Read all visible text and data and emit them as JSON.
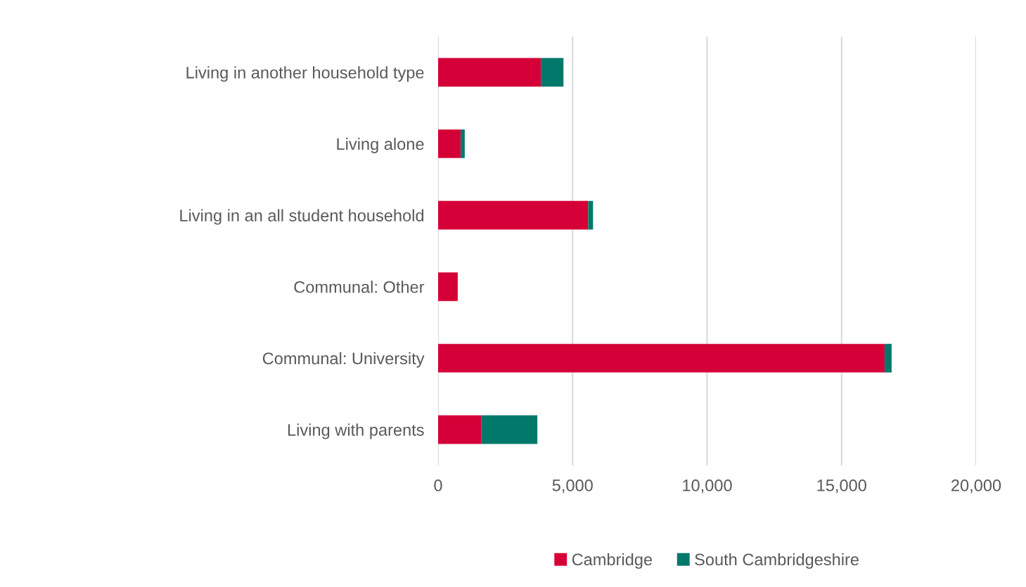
{
  "chart_data": {
    "type": "bar",
    "orientation": "horizontal",
    "stacked": true,
    "categories": [
      "Living in another household type",
      "Living alone",
      "Living in an all student household",
      "Communal: Other",
      "Communal: University",
      "Living with parents"
    ],
    "series": [
      {
        "name": "Cambridge",
        "color": "#d50037",
        "values": [
          3820,
          840,
          5580,
          730,
          16600,
          1600
        ]
      },
      {
        "name": "South Cambridgeshire",
        "color": "#00796b",
        "values": [
          840,
          150,
          180,
          null,
          260,
          2090
        ]
      }
    ],
    "xlim": [
      0,
      20000
    ],
    "xticks": [
      {
        "value": 0,
        "label": "0"
      },
      {
        "value": 5000,
        "label": "5,000"
      },
      {
        "value": 10000,
        "label": "10,000"
      },
      {
        "value": 15000,
        "label": "15,000"
      },
      {
        "value": 20000,
        "label": "20,000"
      }
    ],
    "grid": "x",
    "legend": "bottom"
  }
}
